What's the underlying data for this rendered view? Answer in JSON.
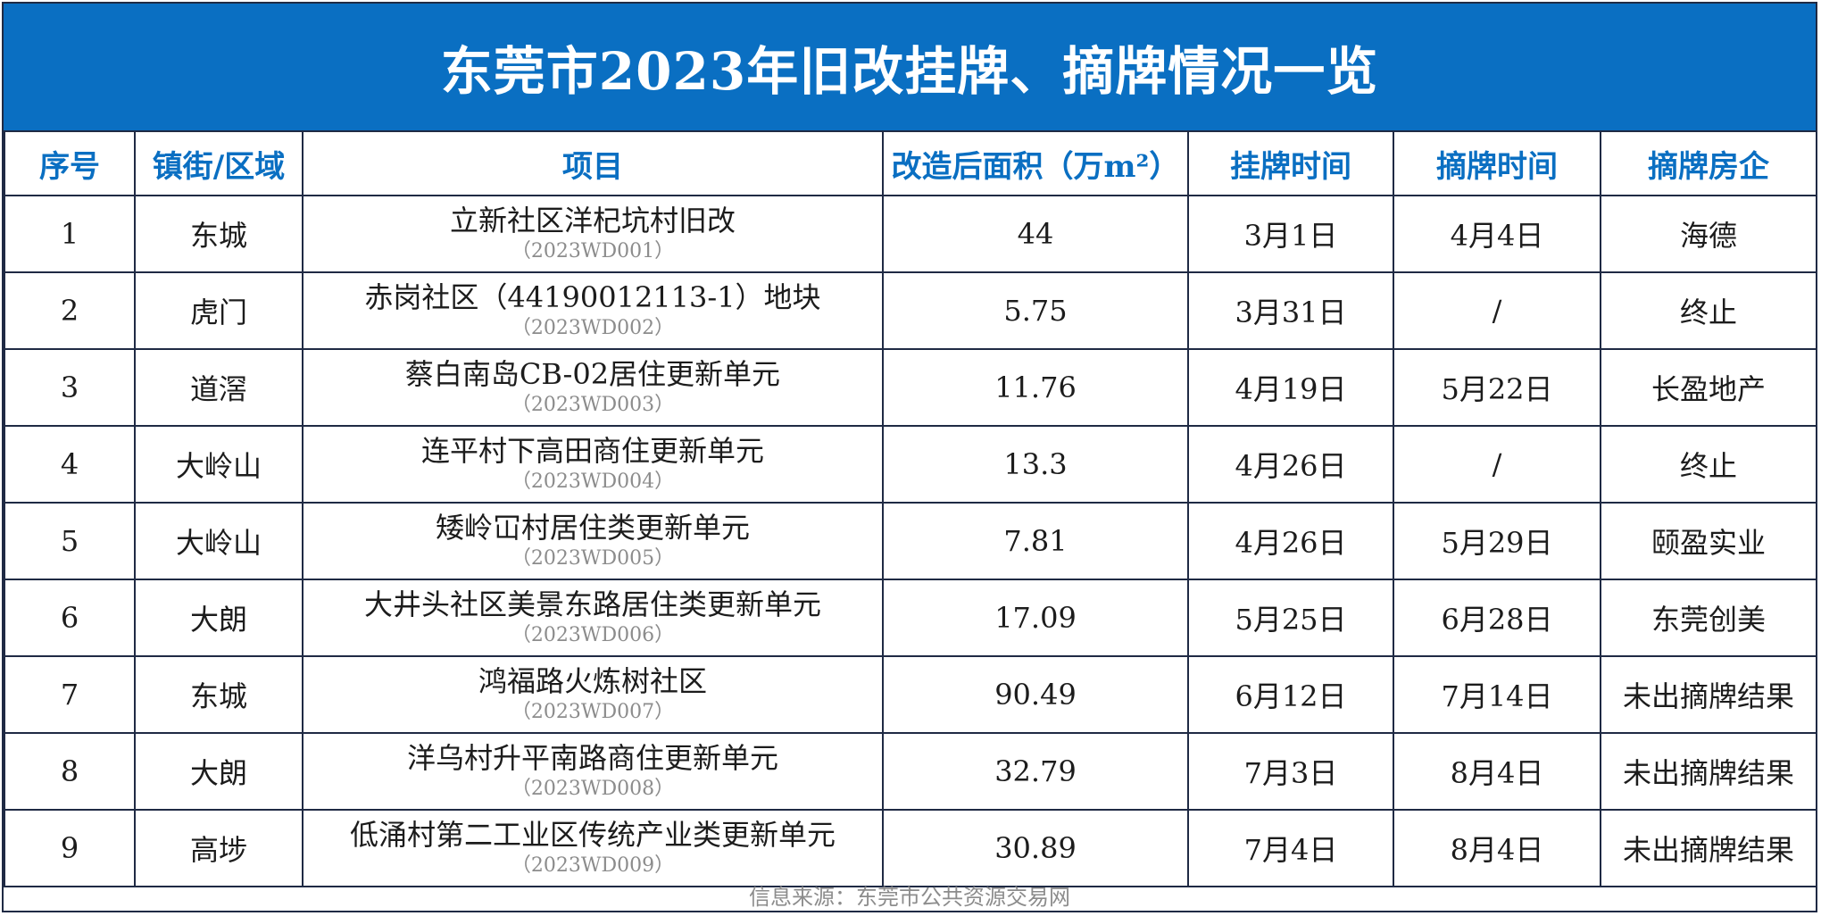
{
  "title": "东莞市2023年旧改挂牌、摘牌情况一览",
  "headers": {
    "seq": "序号",
    "town": "镇街/区域",
    "project": "项目",
    "area": "改造后面积（万m²）",
    "listing_date": "挂牌时间",
    "delisting_date": "摘牌时间",
    "developer": "摘牌房企"
  },
  "rows": [
    {
      "seq": "1",
      "town": "东城",
      "project": "立新社区洋杞坑村旧改",
      "code": "（2023WD001）",
      "area": "44",
      "listing_date": "3月1日",
      "delisting_date": "4月4日",
      "developer": "海德"
    },
    {
      "seq": "2",
      "town": "虎门",
      "project": "赤岗社区（44190012113-1）地块",
      "code": "（2023WD002）",
      "area": "5.75",
      "listing_date": "3月31日",
      "delisting_date": "/",
      "developer": "终止"
    },
    {
      "seq": "3",
      "town": "道滘",
      "project": "蔡白南岛CB-02居住更新单元",
      "code": "（2023WD003）",
      "area": "11.76",
      "listing_date": "4月19日",
      "delisting_date": "5月22日",
      "developer": "长盈地产"
    },
    {
      "seq": "4",
      "town": "大岭山",
      "project": "连平村下高田商住更新单元",
      "code": "（2023WD004）",
      "area": "13.3",
      "listing_date": "4月26日",
      "delisting_date": "/",
      "developer": "终止"
    },
    {
      "seq": "5",
      "town": "大岭山",
      "project": "矮岭冚村居住类更新单元",
      "code": "（2023WD005）",
      "area": "7.81",
      "listing_date": "4月26日",
      "delisting_date": "5月29日",
      "developer": "颐盈实业"
    },
    {
      "seq": "6",
      "town": "大朗",
      "project": "大井头社区美景东路居住类更新单元",
      "code": "（2023WD006）",
      "area": "17.09",
      "listing_date": "5月25日",
      "delisting_date": "6月28日",
      "developer": "东莞创美"
    },
    {
      "seq": "7",
      "town": "东城",
      "project": "鸿福路火炼树社区",
      "code": "（2023WD007）",
      "area": "90.49",
      "listing_date": "6月12日",
      "delisting_date": "7月14日",
      "developer": "未出摘牌结果"
    },
    {
      "seq": "8",
      "town": "大朗",
      "project": "洋乌村升平南路商住更新单元",
      "code": "（2023WD008）",
      "area": "32.79",
      "listing_date": "7月3日",
      "delisting_date": "8月4日",
      "developer": "未出摘牌结果"
    },
    {
      "seq": "9",
      "town": "高埗",
      "project": "低涌村第二工业区传统产业类更新单元",
      "code": "（2023WD009）",
      "area": "30.89",
      "listing_date": "7月4日",
      "delisting_date": "8月4日",
      "developer": "未出摘牌结果"
    }
  ],
  "source": "信息来源：东莞市公共资源交易网",
  "colors": {
    "title_bg": "#0a6fc2",
    "header_text": "#0a6fc2",
    "border": "#1f2a44"
  }
}
